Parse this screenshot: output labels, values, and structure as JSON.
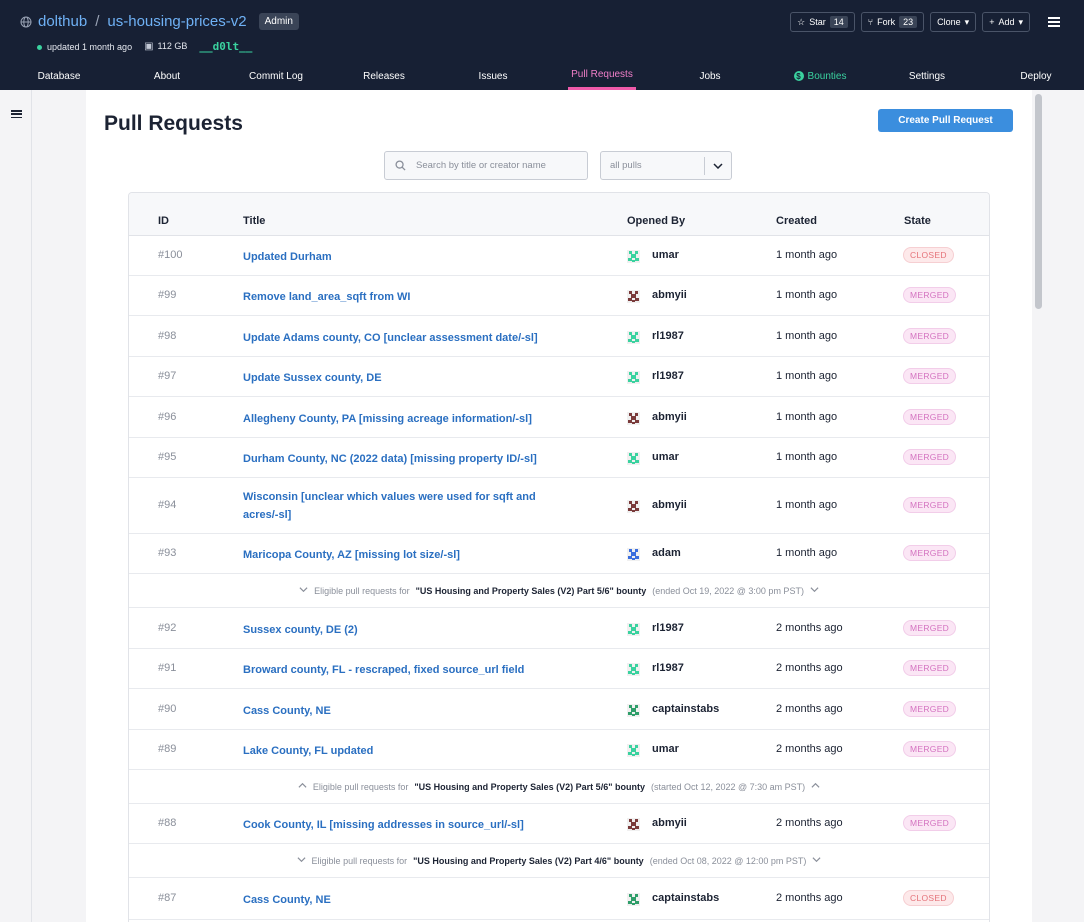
{
  "header": {
    "owner": "dolthub",
    "repo": "us-housing-prices-v2",
    "admin_badge": "Admin",
    "updated": "updated 1 month ago",
    "size": "112 GB",
    "logo_text": "__d0lt__",
    "star_label": "Star",
    "star_count": "14",
    "fork_label": "Fork",
    "fork_count": "23",
    "clone_label": "Clone",
    "add_label": "Add"
  },
  "nav": [
    {
      "label": "Database"
    },
    {
      "label": "About"
    },
    {
      "label": "Commit Log"
    },
    {
      "label": "Releases"
    },
    {
      "label": "Issues"
    },
    {
      "label": "Pull Requests"
    },
    {
      "label": "Jobs"
    },
    {
      "label": "Bounties"
    },
    {
      "label": "Settings"
    },
    {
      "label": "Deploy"
    }
  ],
  "page": {
    "title": "Pull Requests",
    "create_button": "Create Pull Request",
    "search_placeholder": "Search by title or creator name",
    "filter_value": "all pulls"
  },
  "table": {
    "headers": {
      "id": "ID",
      "title": "Title",
      "opened_by": "Opened By",
      "created": "Created",
      "state": "State"
    },
    "rows": [
      {
        "id": "#100",
        "title": "Updated Durham",
        "user": "umar",
        "created": "1 month ago",
        "state": "CLOSED"
      },
      {
        "id": "#99",
        "title": "Remove land_area_sqft from WI",
        "user": "abmyii",
        "created": "1 month ago",
        "state": "MERGED"
      },
      {
        "id": "#98",
        "title": "Update Adams county, CO [unclear assessment date/-sl]",
        "user": "rl1987",
        "created": "1 month ago",
        "state": "MERGED"
      },
      {
        "id": "#97",
        "title": "Update Sussex county, DE",
        "user": "rl1987",
        "created": "1 month ago",
        "state": "MERGED"
      },
      {
        "id": "#96",
        "title": "Allegheny County, PA [missing acreage information/-sl]",
        "user": "abmyii",
        "created": "1 month ago",
        "state": "MERGED"
      },
      {
        "id": "#95",
        "title": "Durham County, NC (2022 data) [missing property ID/-sl]",
        "user": "umar",
        "created": "1 month ago",
        "state": "MERGED"
      },
      {
        "id": "#94",
        "title": "Wisconsin [unclear which values were used for sqft and acres/-sl]",
        "user": "abmyii",
        "created": "1 month ago",
        "state": "MERGED"
      },
      {
        "id": "#93",
        "title": "Maricopa County, AZ [missing lot size/-sl]",
        "user": "adam",
        "created": "1 month ago",
        "state": "MERGED"
      },
      {
        "id": "#92",
        "title": "Sussex county, DE (2)",
        "user": "rl1987",
        "created": "2 months ago",
        "state": "MERGED"
      },
      {
        "id": "#91",
        "title": "Broward county, FL - rescraped, fixed source_url field",
        "user": "rl1987",
        "created": "2 months ago",
        "state": "MERGED"
      },
      {
        "id": "#90",
        "title": "Cass County, NE",
        "user": "captainstabs",
        "created": "2 months ago",
        "state": "MERGED"
      },
      {
        "id": "#89",
        "title": "Lake County, FL updated",
        "user": "umar",
        "created": "2 months ago",
        "state": "MERGED"
      },
      {
        "id": "#88",
        "title": "Cook County, IL [missing addresses in source_url/-sl]",
        "user": "abmyii",
        "created": "2 months ago",
        "state": "MERGED"
      },
      {
        "id": "#87",
        "title": "Cass County, NE",
        "user": "captainstabs",
        "created": "2 months ago",
        "state": "CLOSED"
      }
    ],
    "bounty_rows": [
      {
        "prefix": "Eligible pull requests for",
        "name": "\"US Housing and Property Sales (V2) Part 5/6\" bounty",
        "suffix": "(ended Oct 19, 2022 @ 3:00 pm PST)"
      },
      {
        "prefix": "Eligible pull requests for",
        "name": "\"US Housing and Property Sales (V2) Part 5/6\" bounty",
        "suffix": "(started Oct 12, 2022 @ 7:30 am PST)"
      },
      {
        "prefix": "Eligible pull requests for",
        "name": "\"US Housing and Property Sales (V2) Part 4/6\" bounty",
        "suffix": "(ended Oct 08, 2022 @ 12:00 pm PST)"
      }
    ]
  },
  "colors": {
    "header_bg": "#172034",
    "link": "#2a6fc1",
    "accent_pink": "#ef5aaa",
    "merged": "#d472c0",
    "closed": "#e5737a",
    "button_blue": "#3b8ede"
  }
}
